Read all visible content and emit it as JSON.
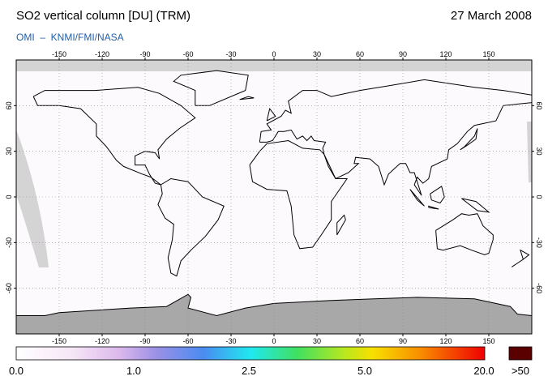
{
  "header": {
    "title": "SO2 vertical column [DU] (TRM)",
    "date": "27 March 2008",
    "credit": "OMI  –  KNMI/FMI/NASA"
  },
  "map": {
    "lon_ticks": [
      -150,
      -120,
      -90,
      -60,
      -30,
      0,
      30,
      60,
      90,
      120,
      150
    ],
    "lat_ticks": [
      60,
      30,
      0,
      -30,
      -60
    ]
  },
  "colorbar": {
    "labels": [
      "0.0",
      "1.0",
      "2.5",
      "5.0",
      "20.0",
      ">50"
    ]
  }
}
